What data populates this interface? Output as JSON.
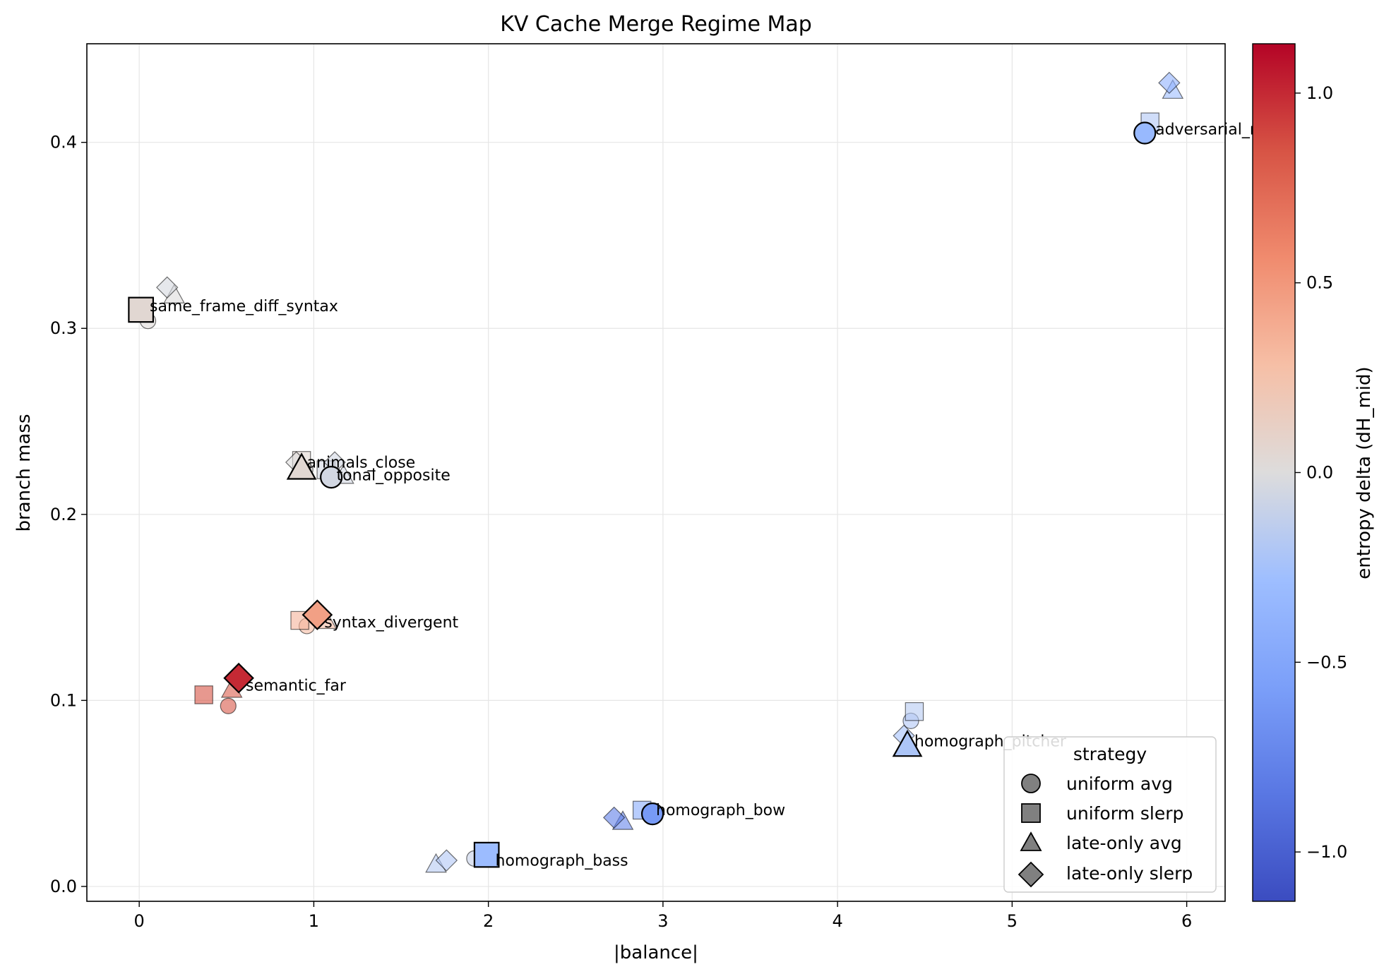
{
  "chart_data": {
    "type": "scatter",
    "title": "KV Cache Merge Regime Map",
    "xlabel": "|balance|",
    "ylabel": "branch mass",
    "xlim": [
      -0.3,
      6.22
    ],
    "ylim": [
      -0.008,
      0.453
    ],
    "xticks": [
      0,
      1,
      2,
      3,
      4,
      5,
      6
    ],
    "yticks": [
      0.0,
      0.1,
      0.2,
      0.3,
      0.4
    ],
    "ytick_labels": [
      "0.0",
      "0.1",
      "0.2",
      "0.3",
      "0.4"
    ],
    "grid": true,
    "colorbar": {
      "label": "entropy delta (dH_mid)",
      "range": [
        -1.13,
        1.13
      ],
      "ticks": [
        -1.0,
        -0.5,
        0.0,
        0.5,
        1.0
      ],
      "tick_labels": [
        "−1.0",
        "−0.5",
        "0.0",
        "0.5",
        "1.0"
      ],
      "colormap": "coolwarm"
    },
    "legend": {
      "title": "strategy",
      "position": "lower right",
      "items": [
        {
          "marker": "circle",
          "label": "uniform avg"
        },
        {
          "marker": "square",
          "label": "uniform slerp"
        },
        {
          "marker": "triangle",
          "label": "late-only avg"
        },
        {
          "marker": "diamond",
          "label": "late-only slerp"
        }
      ]
    },
    "annotations": [
      {
        "text": "adversarial_mask",
        "x": 5.82,
        "y": 0.405
      },
      {
        "text": "same_frame_diff_syntax",
        "x": 0.06,
        "y": 0.31
      },
      {
        "text": "animals_close",
        "x": 0.96,
        "y": 0.226
      },
      {
        "text": "tonal_opposite",
        "x": 1.13,
        "y": 0.219
      },
      {
        "text": "syntax_divergent",
        "x": 1.06,
        "y": 0.14
      },
      {
        "text": "semantic_far",
        "x": 0.61,
        "y": 0.106
      },
      {
        "text": "homograph_pitcher",
        "x": 4.44,
        "y": 0.076
      },
      {
        "text": "homograph_bow",
        "x": 2.96,
        "y": 0.039
      },
      {
        "text": "homograph_bass",
        "x": 2.04,
        "y": 0.012
      }
    ],
    "series": [
      {
        "name": "uniform avg",
        "marker": "circle",
        "points": [
          {
            "case": "adversarial_mask",
            "x": 5.76,
            "y": 0.405,
            "dH": -0.33,
            "best": true
          },
          {
            "case": "same_frame_diff_syntax",
            "x": 0.05,
            "y": 0.304,
            "dH": 0.02,
            "best": false
          },
          {
            "case": "animals_close",
            "x": 0.95,
            "y": 0.224,
            "dH": 0.0,
            "best": false
          },
          {
            "case": "tonal_opposite",
            "x": 1.1,
            "y": 0.22,
            "dH": -0.05,
            "best": true
          },
          {
            "case": "syntax_divergent",
            "x": 0.96,
            "y": 0.14,
            "dH": 0.3,
            "best": false
          },
          {
            "case": "semantic_far",
            "x": 0.51,
            "y": 0.097,
            "dH": 0.82,
            "best": false
          },
          {
            "case": "homograph_pitcher",
            "x": 4.42,
            "y": 0.089,
            "dH": -0.2,
            "best": false
          },
          {
            "case": "homograph_bow",
            "x": 2.94,
            "y": 0.039,
            "dH": -0.6,
            "best": true
          },
          {
            "case": "homograph_bass",
            "x": 1.92,
            "y": 0.015,
            "dH": -0.1,
            "best": false
          }
        ]
      },
      {
        "name": "uniform slerp",
        "marker": "square",
        "points": [
          {
            "case": "adversarial_mask",
            "x": 5.79,
            "y": 0.411,
            "dH": -0.2,
            "best": false
          },
          {
            "case": "same_frame_diff_syntax",
            "x": 0.01,
            "y": 0.31,
            "dH": 0.05,
            "best": true
          },
          {
            "case": "animals_close",
            "x": 0.93,
            "y": 0.229,
            "dH": 0.05,
            "best": false
          },
          {
            "case": "tonal_opposite",
            "x": 1.07,
            "y": 0.224,
            "dH": -0.05,
            "best": false
          },
          {
            "case": "syntax_divergent",
            "x": 0.92,
            "y": 0.143,
            "dH": 0.35,
            "best": false
          },
          {
            "case": "semantic_far",
            "x": 0.37,
            "y": 0.103,
            "dH": 0.85,
            "best": false
          },
          {
            "case": "homograph_pitcher",
            "x": 4.44,
            "y": 0.094,
            "dH": -0.18,
            "best": false
          },
          {
            "case": "homograph_bow",
            "x": 2.88,
            "y": 0.041,
            "dH": -0.45,
            "best": false
          },
          {
            "case": "homograph_bass",
            "x": 1.99,
            "y": 0.017,
            "dH": -0.3,
            "best": true
          }
        ]
      },
      {
        "name": "late-only avg",
        "marker": "triangle",
        "points": [
          {
            "case": "adversarial_mask",
            "x": 5.92,
            "y": 0.428,
            "dH": -0.3,
            "best": false
          },
          {
            "case": "same_frame_diff_syntax",
            "x": 0.2,
            "y": 0.318,
            "dH": 0.0,
            "best": false
          },
          {
            "case": "animals_close",
            "x": 0.93,
            "y": 0.225,
            "dH": 0.05,
            "best": true
          },
          {
            "case": "tonal_opposite",
            "x": 1.17,
            "y": 0.221,
            "dH": -0.05,
            "best": false
          },
          {
            "case": "syntax_divergent",
            "x": 1.07,
            "y": 0.143,
            "dH": 0.3,
            "best": false
          },
          {
            "case": "semantic_far",
            "x": 0.53,
            "y": 0.106,
            "dH": 0.8,
            "best": false
          },
          {
            "case": "homograph_pitcher",
            "x": 4.4,
            "y": 0.076,
            "dH": -0.22,
            "best": true
          },
          {
            "case": "homograph_bow",
            "x": 2.77,
            "y": 0.035,
            "dH": -0.75,
            "best": false
          },
          {
            "case": "homograph_bass",
            "x": 1.7,
            "y": 0.012,
            "dH": -0.18,
            "best": false
          }
        ]
      },
      {
        "name": "late-only slerp",
        "marker": "diamond",
        "points": [
          {
            "case": "adversarial_mask",
            "x": 5.9,
            "y": 0.432,
            "dH": -0.4,
            "best": false
          },
          {
            "case": "same_frame_diff_syntax",
            "x": 0.16,
            "y": 0.322,
            "dH": -0.03,
            "best": false
          },
          {
            "case": "animals_close",
            "x": 0.9,
            "y": 0.228,
            "dH": 0.0,
            "best": false
          },
          {
            "case": "tonal_opposite",
            "x": 1.12,
            "y": 0.228,
            "dH": -0.05,
            "best": false
          },
          {
            "case": "syntax_divergent",
            "x": 1.02,
            "y": 0.146,
            "dH": 0.45,
            "best": true
          },
          {
            "case": "semantic_far",
            "x": 0.57,
            "y": 0.112,
            "dH": 1.0,
            "best": true
          },
          {
            "case": "homograph_pitcher",
            "x": 4.38,
            "y": 0.081,
            "dH": -0.25,
            "best": false
          },
          {
            "case": "homograph_bow",
            "x": 2.72,
            "y": 0.037,
            "dH": -0.8,
            "best": false
          },
          {
            "case": "homograph_bass",
            "x": 1.76,
            "y": 0.014,
            "dH": -0.2,
            "best": false
          }
        ]
      }
    ]
  }
}
